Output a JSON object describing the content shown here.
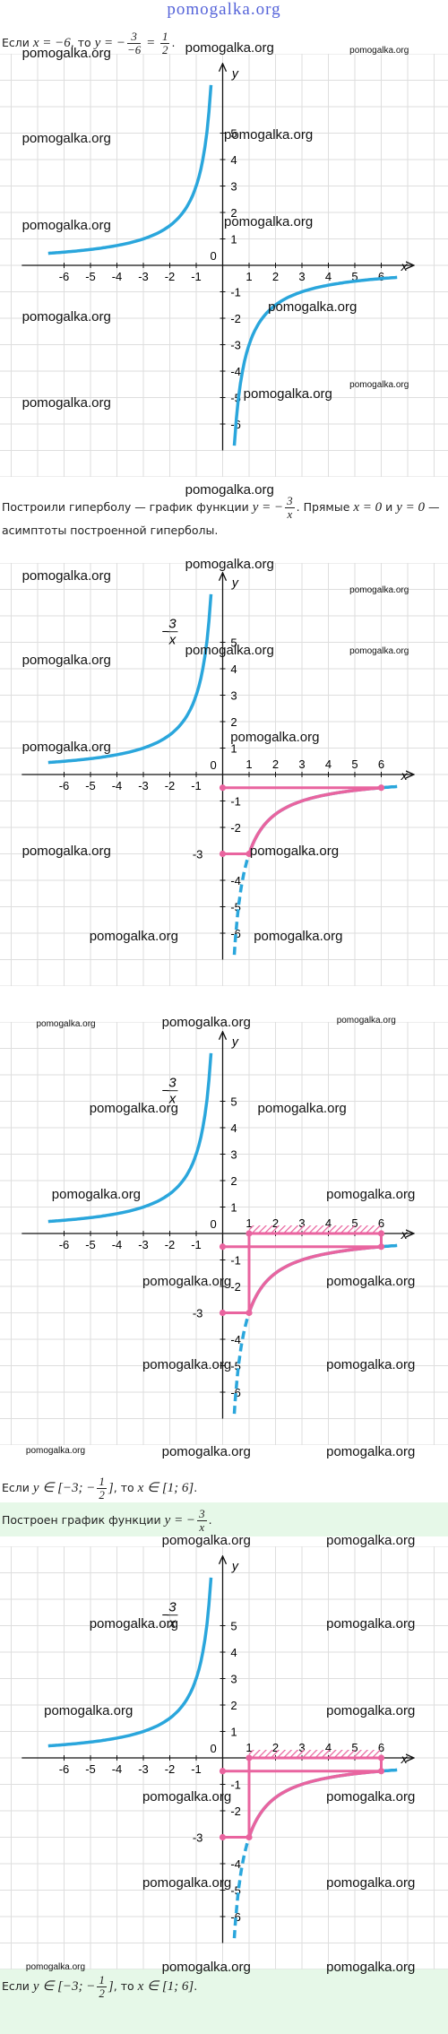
{
  "site_title": "pomogalka.org",
  "watermark": "pomogalka.org",
  "lines": [
    {
      "segments": [
        {
          "text": "Если "
        },
        {
          "math": "x = −6"
        },
        {
          "text": ", то "
        },
        {
          "math": "y = −"
        },
        {
          "num": "3",
          "den": "−6"
        },
        {
          "math": " = "
        },
        {
          "num": "1",
          "den": "2"
        },
        {
          "text": "."
        }
      ]
    },
    {
      "segments": [
        {
          "text": "Построили гиперболу — график функции "
        },
        {
          "math": "y = −"
        },
        {
          "num": "3",
          "den": "x"
        },
        {
          "text": ". Прямые "
        },
        {
          "math": "x = 0"
        },
        {
          "text": " и "
        },
        {
          "math": "y = 0"
        },
        {
          "text": " — асимптоты построенной гиперболы."
        }
      ]
    },
    {
      "segments": [
        {
          "text": "Если "
        },
        {
          "math": "y ∈ [−3; −"
        },
        {
          "num": "1",
          "den": "2"
        },
        {
          "math": "]"
        },
        {
          "text": ", то "
        },
        {
          "math": "x ∈ [1; 6]"
        },
        {
          "text": "."
        }
      ]
    },
    {
      "segments": [
        {
          "text": "Построен график функции "
        },
        {
          "math": "y = −"
        },
        {
          "num": "3",
          "den": "x"
        },
        {
          "text": "."
        }
      ]
    },
    {
      "segments": [
        {
          "text": "Если "
        },
        {
          "math": "y ∈ [−3; −"
        },
        {
          "num": "1",
          "den": "2"
        },
        {
          "math": "]"
        },
        {
          "text": ", то "
        },
        {
          "math": "x ∈ [1; 6]"
        },
        {
          "text": "."
        }
      ]
    }
  ],
  "graphs": [
    {
      "x_ticks": [
        -6,
        -5,
        -4,
        -3,
        -2,
        -1,
        1,
        2,
        3,
        4,
        5,
        6
      ],
      "y_ticks": [
        5,
        4,
        3,
        2,
        1,
        -1,
        -2,
        -3,
        -4,
        -5,
        -6
      ],
      "x_label": "x",
      "y_label": "y",
      "origin_label": "0",
      "show_range": false,
      "show_interval": false
    },
    {
      "x_ticks": [
        -6,
        -5,
        -4,
        -3,
        -2,
        -1,
        1,
        2,
        3,
        4,
        5,
        6
      ],
      "y_ticks": [
        5,
        4,
        3,
        2,
        1,
        -1,
        -2,
        -3,
        -4,
        -5,
        -6
      ],
      "x_label": "x",
      "y_label": "y",
      "origin_label": "0",
      "function_label": {
        "sign": "−",
        "num": "3",
        "den": "x"
      },
      "show_range": true,
      "show_interval": false
    },
    {
      "x_ticks": [
        -6,
        -5,
        -4,
        -3,
        -2,
        -1,
        1,
        2,
        3,
        4,
        5,
        6
      ],
      "y_ticks": [
        5,
        4,
        3,
        2,
        1,
        -1,
        -2,
        -3,
        -4,
        -5,
        -6
      ],
      "x_label": "x",
      "y_label": "y",
      "origin_label": "0",
      "function_label": {
        "sign": "−",
        "num": "3",
        "den": "x"
      },
      "show_range": true,
      "show_interval": true
    },
    {
      "x_ticks": [
        -6,
        -5,
        -4,
        -3,
        -2,
        -1,
        1,
        2,
        3,
        4,
        5,
        6
      ],
      "y_ticks": [
        5,
        4,
        3,
        2,
        1,
        -1,
        -2,
        -3,
        -4,
        -5,
        -6
      ],
      "x_label": "x",
      "y_label": "y",
      "origin_label": "0",
      "function_label": {
        "sign": "−",
        "num": "3",
        "den": "x"
      },
      "show_range": true,
      "show_interval": true
    }
  ]
}
